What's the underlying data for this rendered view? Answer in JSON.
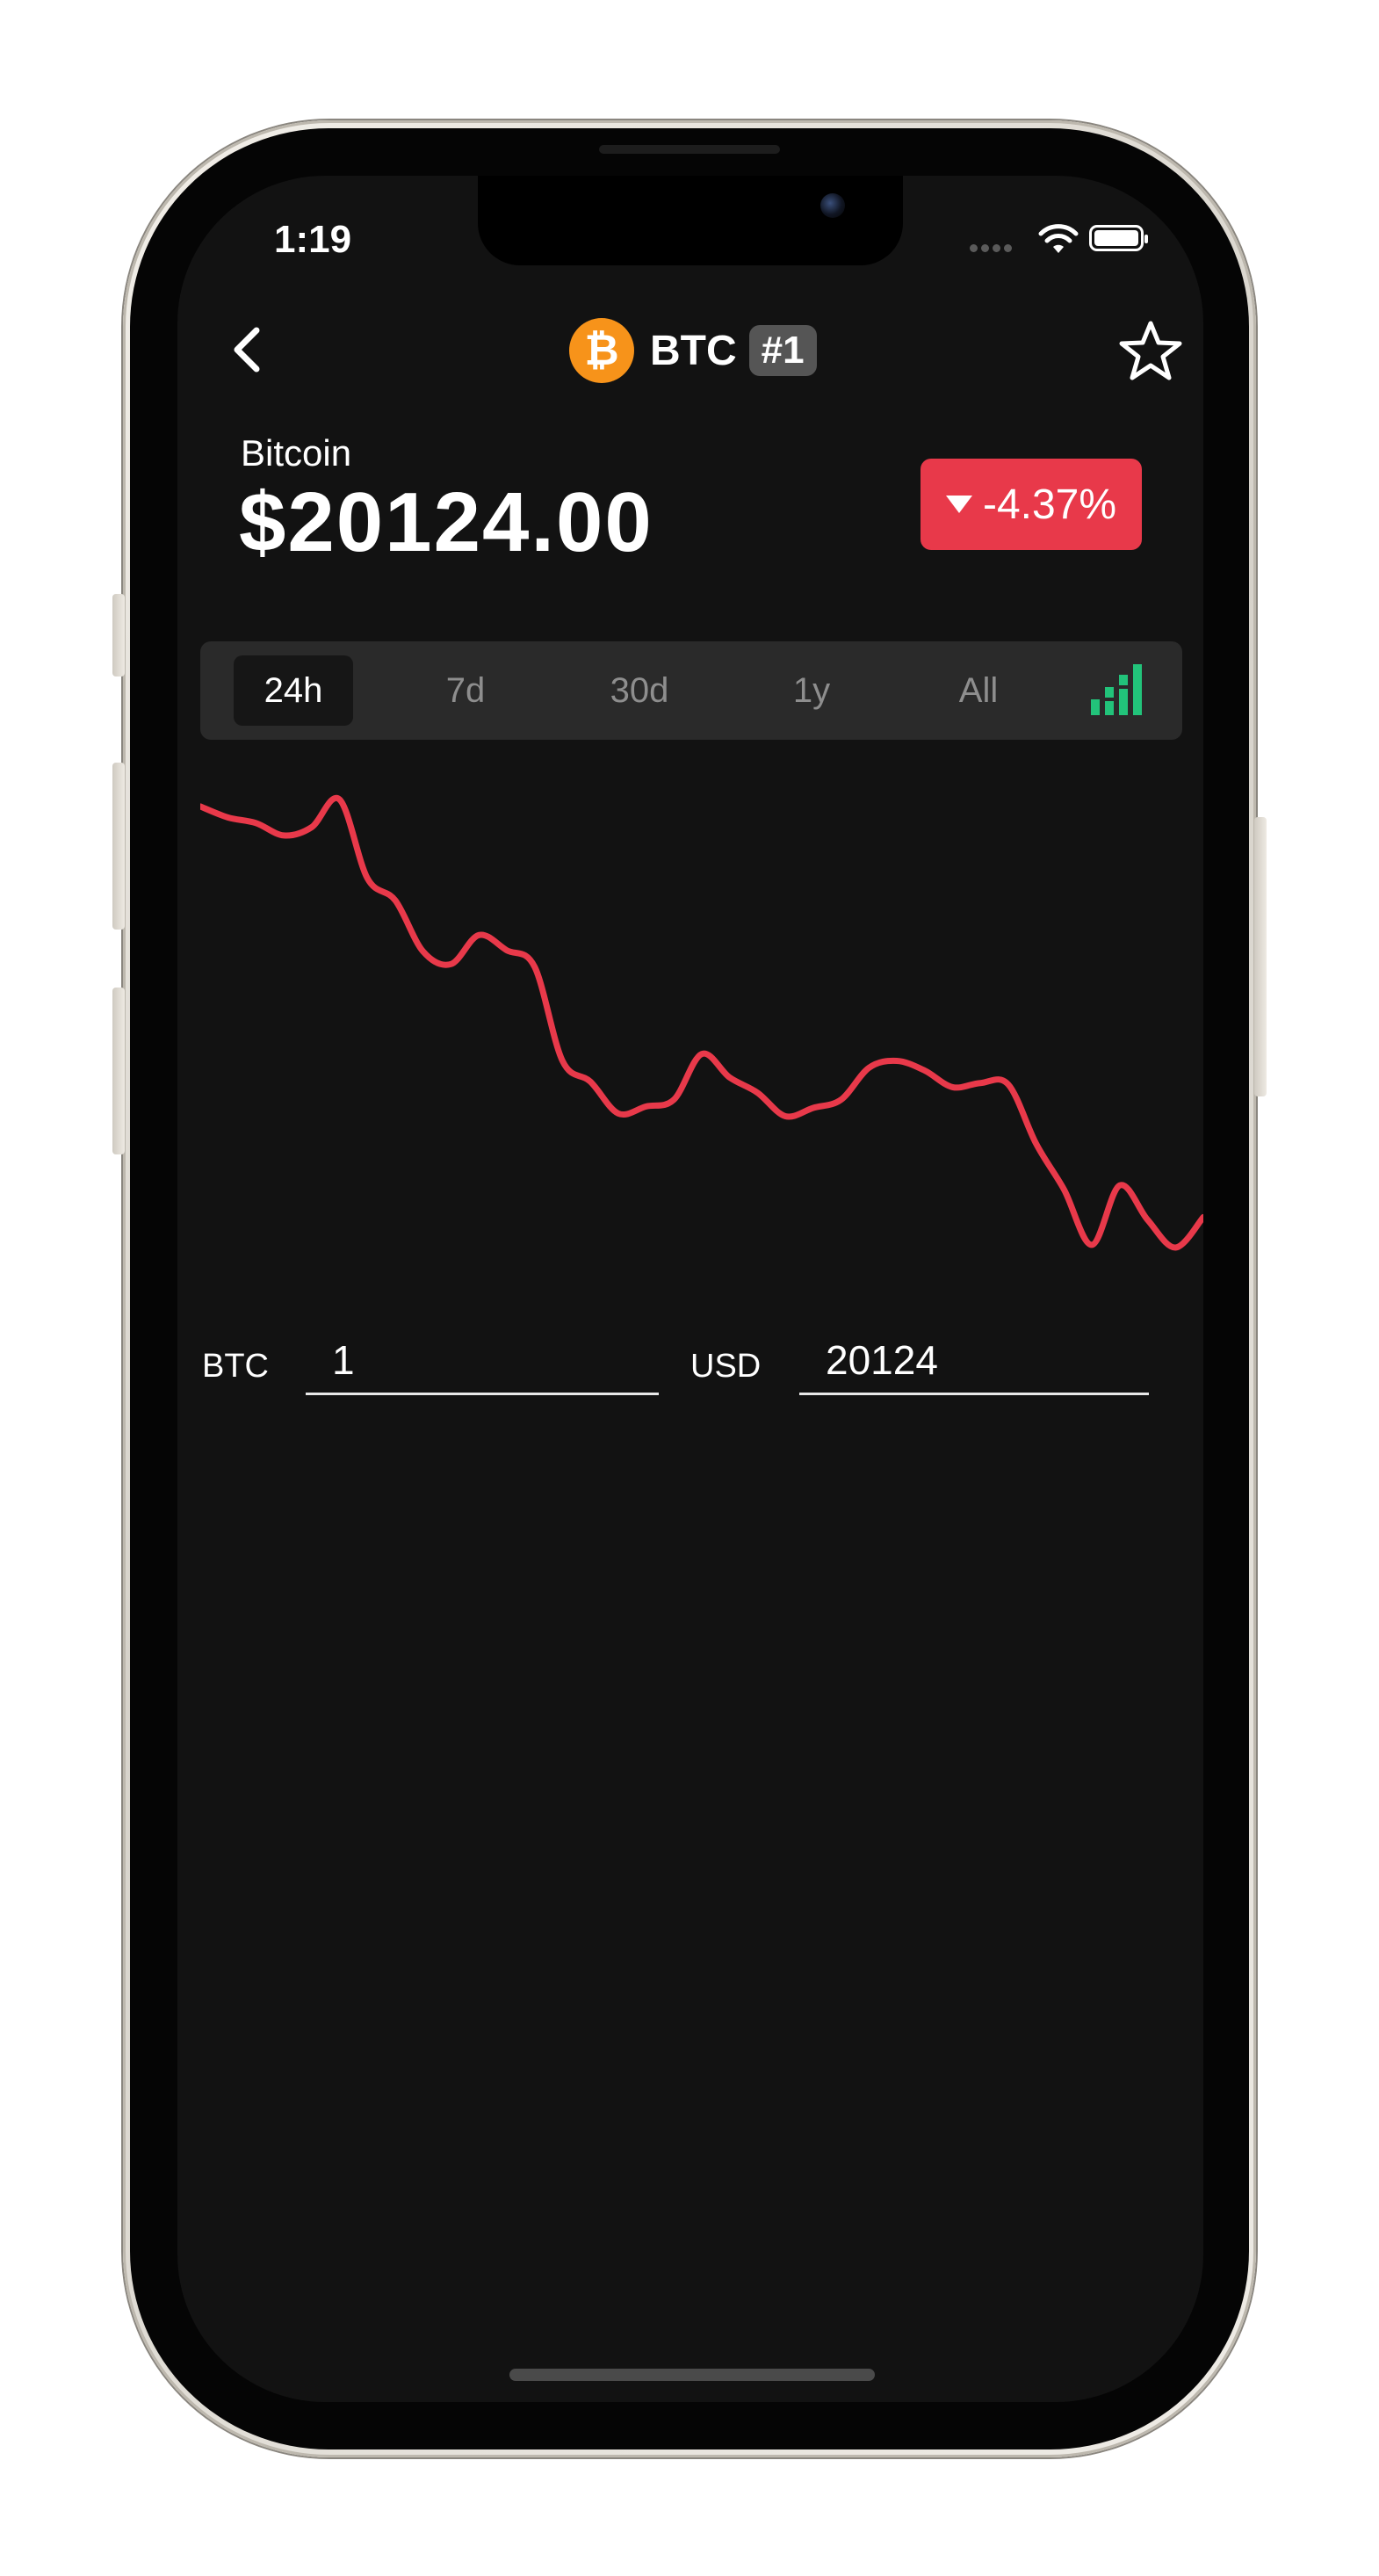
{
  "status_bar": {
    "time": "1:19"
  },
  "header": {
    "symbol": "BTC",
    "rank": "#1",
    "logo_glyph": "₿",
    "back_icon": "chevron-left-icon",
    "favorite_icon": "star-outline-icon"
  },
  "coin": {
    "name": "Bitcoin",
    "price": "$20124.00",
    "change": "-4.37%",
    "change_color": "#e8394a"
  },
  "range_tabs": [
    {
      "label": "24h",
      "active": true
    },
    {
      "label": "7d",
      "active": false
    },
    {
      "label": "30d",
      "active": false
    },
    {
      "label": "1y",
      "active": false
    },
    {
      "label": "All",
      "active": false
    }
  ],
  "chart_type_icon": "bar-chart-toggle-icon",
  "chart_data": {
    "type": "line",
    "color": "#e8394a",
    "values": [
      100,
      99.2,
      98.8,
      97.9,
      98.5,
      100.5,
      94.8,
      93.2,
      89.5,
      88.6,
      90.7,
      89.6,
      88.4,
      81.6,
      80.1,
      77.8,
      78.3,
      78.8,
      82.1,
      80.4,
      79.3,
      77.6,
      78.2,
      78.8,
      81.1,
      81.6,
      80.9,
      79.7,
      80.0,
      79.9,
      75.6,
      72.3,
      68.3,
      72.6,
      70.1,
      68.1,
      70.3
    ]
  },
  "converter": {
    "from_label": "BTC",
    "from_value": "1",
    "to_label": "USD",
    "to_value": "20124"
  }
}
